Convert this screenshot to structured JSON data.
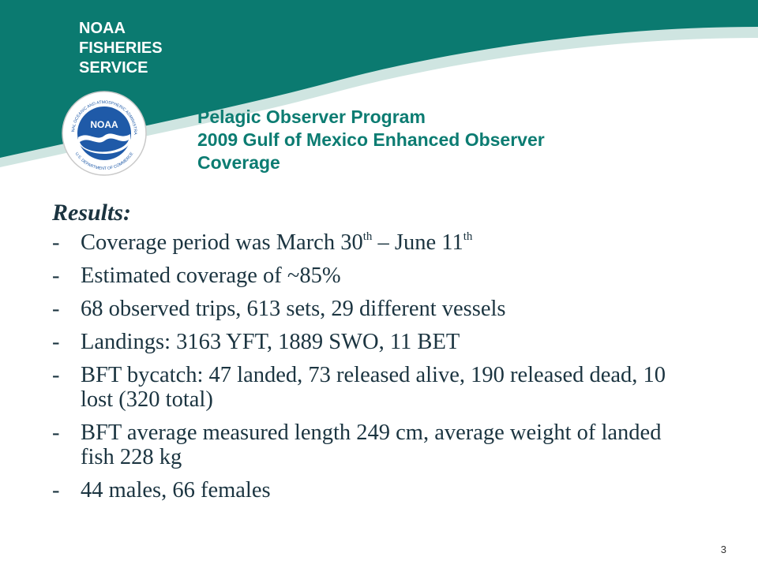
{
  "header": {
    "agency_lines": [
      "NOAA",
      "FISHERIES",
      "SERVICE"
    ],
    "seal": {
      "center_text": "NOAA",
      "ring_text_top": "NATIONAL OCEANIC AND ATMOSPHERIC ADMINISTRATION",
      "ring_text_bottom": "U.S. DEPARTMENT OF COMMERCE"
    },
    "title_lines": [
      "Pelagic Observer Program",
      "2009 Gulf of Mexico Enhanced Observer",
      "Coverage"
    ]
  },
  "content": {
    "heading": "Results:",
    "bullets": [
      {
        "dash": "-",
        "parts": [
          {
            "text": "Coverage period was March 30"
          },
          {
            "text": "th",
            "sup": true
          },
          {
            "text": " – June 11"
          },
          {
            "text": "th",
            "sup": true
          }
        ]
      },
      {
        "dash": "-",
        "parts": [
          {
            "text": "Estimated coverage of ~85%"
          }
        ]
      },
      {
        "dash": "-",
        "parts": [
          {
            "text": "68 observed trips, 613 sets, 29 different vessels"
          }
        ]
      },
      {
        "dash": "-",
        "parts": [
          {
            "text": "Landings: 3163 YFT, 1889 SWO, 11 BET"
          }
        ]
      },
      {
        "dash": "-",
        "parts": [
          {
            "text": "BFT bycatch: 47 landed, 73 released alive, 190 released dead, 10 lost (320 total)"
          }
        ]
      },
      {
        "dash": "-",
        "parts": [
          {
            "text": "BFT average measured length 249 cm, average weight of landed fish 228 kg"
          }
        ]
      },
      {
        "dash": "-",
        "parts": [
          {
            "text": "44 males, 66 females"
          }
        ]
      }
    ]
  },
  "footer": {
    "page_number": "3"
  },
  "colors": {
    "teal_dark": "#0b7a70",
    "teal_light": "#cfe5e1",
    "title_teal": "#0c7c72",
    "body_text": "#1b3440",
    "seal_blue": "#1f5aa8"
  }
}
